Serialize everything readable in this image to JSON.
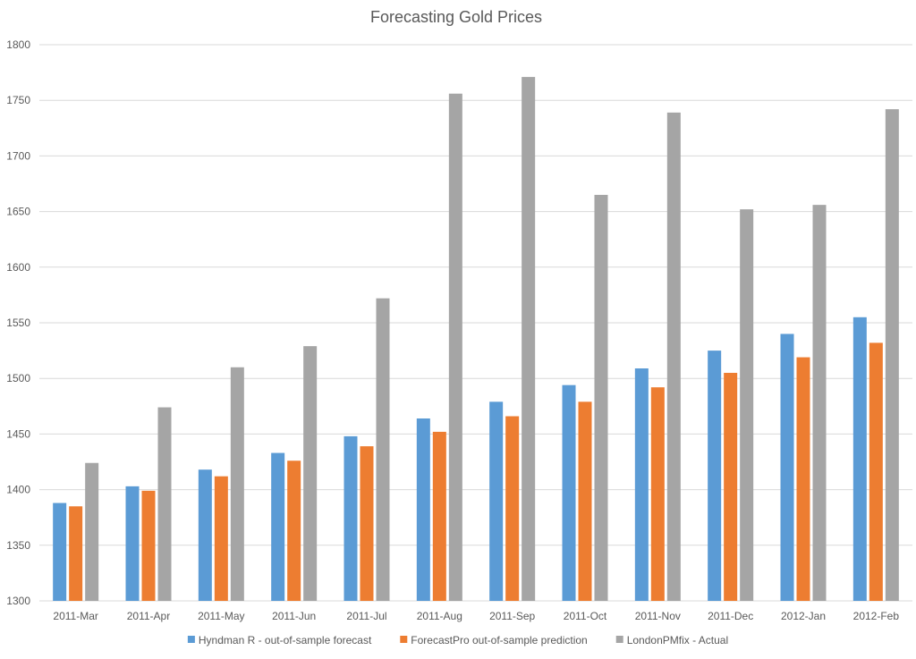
{
  "chart_data": {
    "type": "bar",
    "title": "Forecasting Gold Prices",
    "xlabel": "",
    "ylabel": "",
    "ylim": [
      1300,
      1800
    ],
    "yticks": [
      1300,
      1350,
      1400,
      1450,
      1500,
      1550,
      1600,
      1650,
      1700,
      1750,
      1800
    ],
    "grid": true,
    "legend_position": "bottom",
    "categories": [
      "2011-Mar",
      "2011-Apr",
      "2011-May",
      "2011-Jun",
      "2011-Jul",
      "2011-Aug",
      "2011-Sep",
      "2011-Oct",
      "2011-Nov",
      "2011-Dec",
      "2012-Jan",
      "2012-Feb"
    ],
    "series": [
      {
        "name": "Hyndman R - out-of-sample forecast",
        "color": "#5b9bd5",
        "values": [
          1388,
          1403,
          1418,
          1433,
          1448,
          1464,
          1479,
          1494,
          1509,
          1525,
          1540,
          1555
        ]
      },
      {
        "name": "ForecastPro out-of-sample prediction",
        "color": "#ed7d31",
        "values": [
          1385,
          1399,
          1412,
          1426,
          1439,
          1452,
          1466,
          1479,
          1492,
          1505,
          1519,
          1532
        ]
      },
      {
        "name": "LondonPMfix - Actual",
        "color": "#a5a5a5",
        "values": [
          1424,
          1474,
          1510,
          1529,
          1572,
          1756,
          1771,
          1665,
          1739,
          1652,
          1656,
          1742
        ]
      }
    ]
  }
}
